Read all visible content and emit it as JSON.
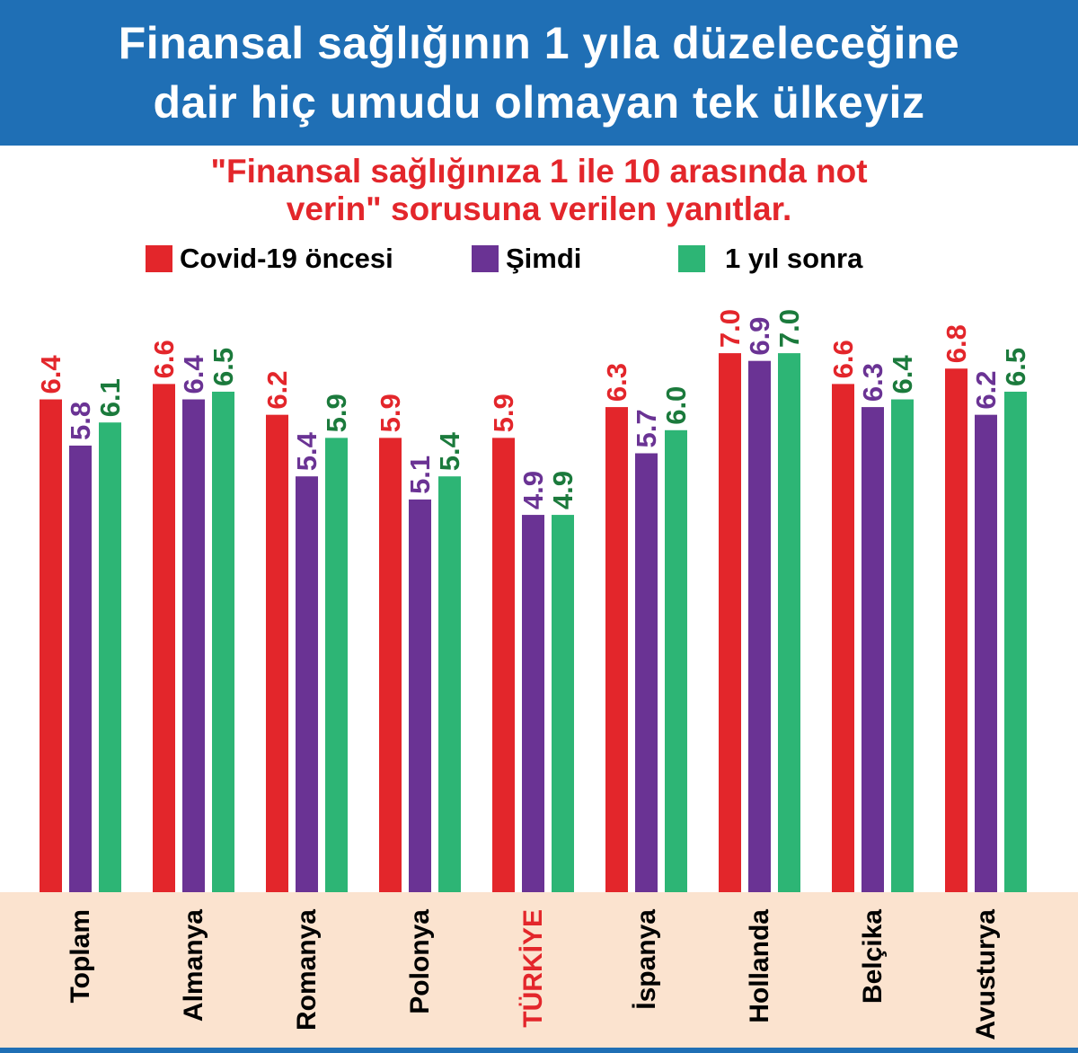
{
  "header": {
    "title_line1": "Finansal sağlığının 1 yıla düzeleceğine",
    "title_line2": "dair hiç umudu olmayan tek ülkeyiz"
  },
  "subtitle": {
    "line1": "\"Finansal sağlığınıza 1 ile 10 arasında not",
    "line2": "verin\" sorusuna verilen yanıtlar."
  },
  "colors": {
    "header_bg": "#1f6fb5",
    "subtitle_text": "#e3262b",
    "category_band": "#fbe3cf",
    "highlight_category": "#e3262b",
    "series_red": "#e3262b",
    "series_purple": "#6a3394",
    "series_green": "#2db575",
    "label_green": "#1b7a3c"
  },
  "chart_data": {
    "type": "bar",
    "title": "Finansal sağlığının 1 yıla düzeleceğine dair hiç umudu olmayan tek ülkeyiz",
    "subtitle": "\"Finansal sağlığınıza 1 ile 10 arasında not verin\" sorusuna verilen yanıtlar.",
    "xlabel": "",
    "ylabel": "",
    "ylim": [
      0,
      7.0
    ],
    "grid": false,
    "legend": "top",
    "categories": [
      "Toplam",
      "Almanya",
      "Romanya",
      "Polonya",
      "TÜRKİYE",
      "İspanya",
      "Hollanda",
      "Belçika",
      "Avusturya"
    ],
    "highlight_category": "TÜRKİYE",
    "series": [
      {
        "name": "Covid-19 öncesi",
        "color": "#e3262b",
        "label_color": "#e3262b",
        "values": [
          6.4,
          6.6,
          6.2,
          5.9,
          5.9,
          6.3,
          7.0,
          6.6,
          6.8
        ]
      },
      {
        "name": "Şimdi",
        "color": "#6a3394",
        "label_color": "#6a3394",
        "values": [
          5.8,
          6.4,
          5.4,
          5.1,
          4.9,
          5.7,
          6.9,
          6.3,
          6.2
        ]
      },
      {
        "name": "1 yıl sonra",
        "color": "#2db575",
        "label_color": "#1b7a3c",
        "values": [
          6.1,
          6.5,
          5.9,
          5.4,
          4.9,
          6.0,
          7.0,
          6.4,
          6.5
        ]
      }
    ]
  }
}
